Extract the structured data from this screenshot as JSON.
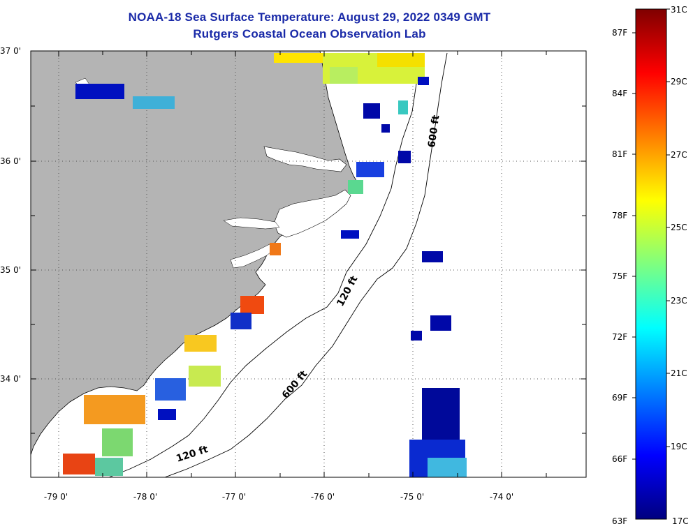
{
  "title": "NOAA-18 Sea Surface Temperature:  August 29, 2022 0349 GMT",
  "subtitle": "Rutgers Coastal Ocean Observation Lab",
  "map": {
    "lat_labels": [
      "37 0'",
      "36 0'",
      "35 0'",
      "34 0'"
    ],
    "lon_labels": [
      "-79 0'",
      "-78 0'",
      "-77 0'",
      "-76 0'",
      "-75 0'",
      "-74 0'"
    ],
    "contour_labels": [
      "600 ft",
      "120 ft",
      "600 ft",
      "120 ft"
    ],
    "land_color": "#b4b4b4",
    "water_color": "#ffffff"
  },
  "colorbar": {
    "celsius_labels": [
      "31C",
      "29C",
      "27C",
      "25C",
      "23C",
      "21C",
      "19C",
      "17C"
    ],
    "fahrenheit_labels": [
      "87F",
      "84F",
      "81F",
      "78F",
      "75F",
      "72F",
      "69F",
      "66F",
      "63F"
    ],
    "min_c": 17,
    "max_c": 31,
    "palette": [
      "#00007f",
      "#0000ff",
      "#007fff",
      "#00ffff",
      "#7fff7f",
      "#ffff00",
      "#ff7f00",
      "#ff0000",
      "#7f0000"
    ]
  }
}
